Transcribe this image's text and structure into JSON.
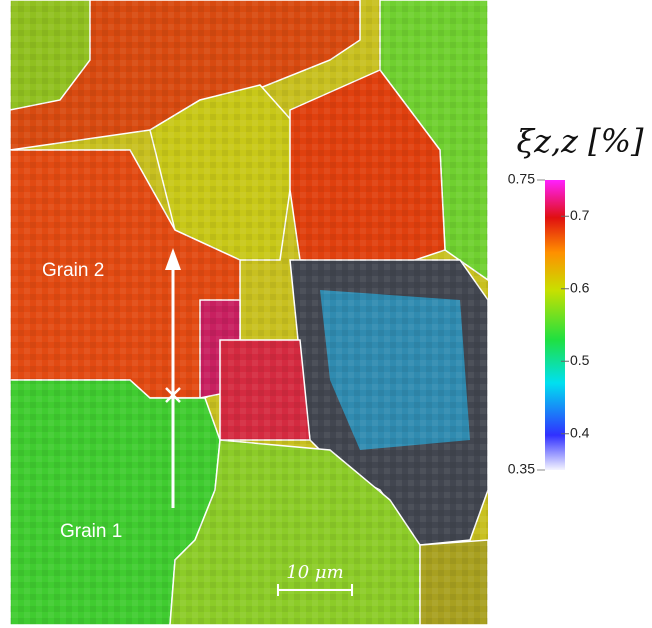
{
  "map": {
    "labels": [
      "Grain 2",
      "Grain 1"
    ],
    "scale_bar": "10 μm"
  },
  "colorbar": {
    "title": "ξz,z [%]",
    "lim": [
      0.35,
      0.75
    ],
    "ticks": [
      0.4,
      0.5,
      0.6,
      0.7
    ]
  }
}
